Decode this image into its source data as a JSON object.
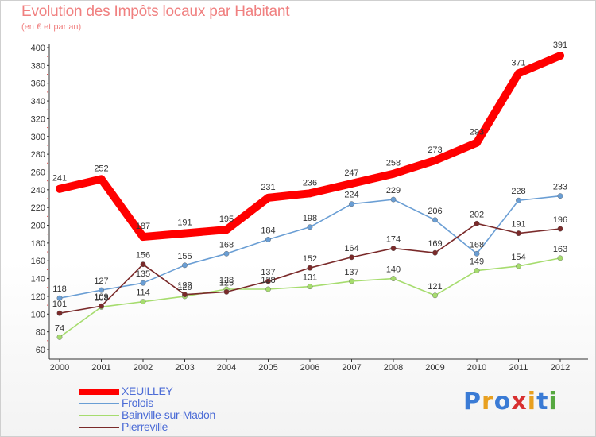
{
  "title": "Evolution des Impôts locaux par Habitant",
  "subtitle": "(en € et par an)",
  "logo": {
    "letters": [
      "P",
      "r",
      "o",
      "x",
      "i",
      "t",
      "i"
    ],
    "colors": [
      "#3a7bd5",
      "#e8a020",
      "#3a7bd5",
      "#d83030",
      "#e8a020",
      "#3a7bd5",
      "#56a840"
    ]
  },
  "chart_data": {
    "type": "line",
    "x": [
      "2000",
      "2001",
      "2002",
      "2003",
      "2004",
      "2005",
      "2006",
      "2007",
      "2008",
      "2009",
      "2010",
      "2011",
      "2012"
    ],
    "ylim": [
      60,
      400
    ],
    "yticks": [
      60,
      80,
      100,
      120,
      140,
      160,
      180,
      200,
      220,
      240,
      260,
      280,
      300,
      320,
      340,
      360,
      380,
      400
    ],
    "grid": false,
    "legend_position": "bottom-left",
    "series": [
      {
        "name": "XEUILLEY",
        "color": "#ff0000",
        "values": [
          241,
          252,
          187,
          191,
          195,
          231,
          236,
          247,
          258,
          273,
          293,
          371,
          391
        ],
        "labels": [
          "241",
          "252",
          "187",
          "191",
          "195",
          "231",
          "236",
          "247",
          "258",
          "273",
          "293",
          "371",
          "391"
        ]
      },
      {
        "name": "Frolois",
        "color": "#6a9ed4",
        "values": [
          118,
          127,
          135,
          155,
          168,
          184,
          198,
          224,
          229,
          206,
          168,
          228,
          233
        ],
        "labels": [
          "118",
          "127",
          "135",
          "155",
          "168",
          "184",
          "198",
          "224",
          "229",
          "206",
          "168",
          "228",
          "233"
        ]
      },
      {
        "name": "Bainville-sur-Madon",
        "color": "#a6dc6e",
        "values": [
          74,
          108,
          114,
          120,
          128,
          128,
          131,
          137,
          140,
          121,
          149,
          154,
          163
        ],
        "labels": [
          "74",
          "108",
          "114",
          "120",
          "128",
          "128",
          "131",
          "137",
          "140",
          "121",
          "149",
          "154",
          "163"
        ]
      },
      {
        "name": "Pierreville",
        "color": "#7a2a2a",
        "values": [
          101,
          109,
          156,
          122,
          125,
          137,
          152,
          164,
          174,
          169,
          202,
          191,
          196
        ],
        "labels": [
          "101",
          "109",
          "156",
          "122",
          "125",
          "137",
          "152",
          "164",
          "174",
          "169",
          "202",
          "191",
          "196"
        ]
      }
    ]
  }
}
